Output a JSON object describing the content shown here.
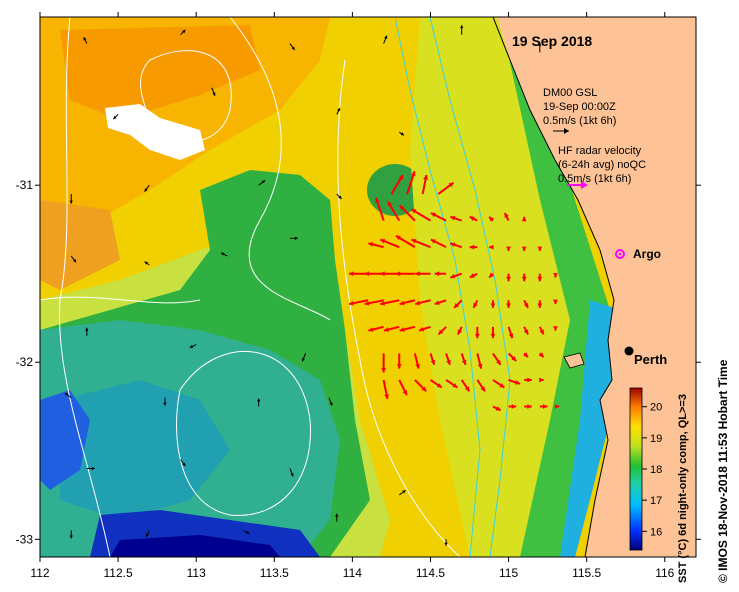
{
  "map": {
    "date_title": "19 Sep 2018",
    "gsl_legend": {
      "line1": "DM00 GSL",
      "line2": "19-Sep 00:00Z",
      "line3": "0.5m/s (1kt 6h)",
      "arrow_color": "#000000"
    },
    "hf_legend": {
      "line1": "HF radar velocity",
      "line2": "(6-24h avg) noQC",
      "line3": "0.5m/s (1kt 6h)",
      "arrow_color": "#ff00ff"
    },
    "argo_label": "Argo",
    "argo_color": "#ff00ff",
    "perth_label": "Perth",
    "land_color": "#fdc396",
    "hf_vector_color": "#ff0000",
    "contour_color": "#ffffff",
    "isobath_color": "#40d0e0"
  },
  "axes": {
    "x_ticks": [
      "112",
      "112.5",
      "113",
      "113.5",
      "114",
      "114.5",
      "115",
      "115.5",
      "116"
    ],
    "y_ticks": [
      "-31",
      "-32",
      "-33"
    ],
    "x_range": [
      112,
      116.2
    ],
    "y_range": [
      -33.1,
      -30.05
    ]
  },
  "colorbar": {
    "ticks": [
      "16",
      "17",
      "18",
      "19",
      "20"
    ],
    "range": [
      15.4,
      20.6
    ],
    "caption": "SST (°C) 6d night-only comp, QL>=3"
  },
  "credit": "© IMOS 18-Nov-2018 11:53 Hobart Time",
  "vectors": {
    "hf_radar": [
      {
        "lon": 114.25,
        "lat": -31.05,
        "u": 0.3,
        "v": 0.5
      },
      {
        "lon": 114.35,
        "lat": -31.05,
        "u": 0.2,
        "v": 0.6
      },
      {
        "lon": 114.45,
        "lat": -31.05,
        "u": 0.1,
        "v": 0.5
      },
      {
        "lon": 114.55,
        "lat": -31.05,
        "u": 0.4,
        "v": 0.3
      },
      {
        "lon": 114.2,
        "lat": -31.2,
        "u": -0.2,
        "v": 0.6
      },
      {
        "lon": 114.3,
        "lat": -31.2,
        "u": -0.3,
        "v": 0.5
      },
      {
        "lon": 114.4,
        "lat": -31.2,
        "u": -0.4,
        "v": 0.4
      },
      {
        "lon": 114.5,
        "lat": -31.2,
        "u": -0.5,
        "v": 0.3
      },
      {
        "lon": 114.6,
        "lat": -31.2,
        "u": -0.4,
        "v": 0.2
      },
      {
        "lon": 114.7,
        "lat": -31.2,
        "u": -0.3,
        "v": 0.1
      },
      {
        "lon": 114.8,
        "lat": -31.2,
        "u": -0.2,
        "v": 0.1
      },
      {
        "lon": 114.9,
        "lat": -31.2,
        "u": -0.1,
        "v": 0.1
      },
      {
        "lon": 115.0,
        "lat": -31.2,
        "u": -0.1,
        "v": 0.2
      },
      {
        "lon": 115.1,
        "lat": -31.2,
        "u": 0.0,
        "v": 0.1
      },
      {
        "lon": 114.2,
        "lat": -31.35,
        "u": -0.4,
        "v": 0.1
      },
      {
        "lon": 114.3,
        "lat": -31.35,
        "u": -0.5,
        "v": 0.2
      },
      {
        "lon": 114.4,
        "lat": -31.35,
        "u": -0.5,
        "v": 0.3
      },
      {
        "lon": 114.5,
        "lat": -31.35,
        "u": -0.5,
        "v": 0.2
      },
      {
        "lon": 114.6,
        "lat": -31.35,
        "u": -0.4,
        "v": 0.2
      },
      {
        "lon": 114.7,
        "lat": -31.35,
        "u": -0.3,
        "v": 0.1
      },
      {
        "lon": 114.8,
        "lat": -31.35,
        "u": -0.2,
        "v": 0.0
      },
      {
        "lon": 114.9,
        "lat": -31.35,
        "u": -0.1,
        "v": 0.0
      },
      {
        "lon": 115.0,
        "lat": -31.35,
        "u": 0.0,
        "v": -0.1
      },
      {
        "lon": 115.1,
        "lat": -31.35,
        "u": 0.0,
        "v": -0.1
      },
      {
        "lon": 115.2,
        "lat": -31.35,
        "u": 0.0,
        "v": -0.1
      },
      {
        "lon": 114.1,
        "lat": -31.5,
        "u": -0.5,
        "v": 0.0
      },
      {
        "lon": 114.2,
        "lat": -31.5,
        "u": -0.5,
        "v": 0.0
      },
      {
        "lon": 114.3,
        "lat": -31.5,
        "u": -0.5,
        "v": 0.0
      },
      {
        "lon": 114.4,
        "lat": -31.5,
        "u": -0.5,
        "v": 0.0
      },
      {
        "lon": 114.5,
        "lat": -31.5,
        "u": -0.4,
        "v": 0.0
      },
      {
        "lon": 114.6,
        "lat": -31.5,
        "u": -0.3,
        "v": 0.0
      },
      {
        "lon": 114.7,
        "lat": -31.5,
        "u": -0.3,
        "v": -0.1
      },
      {
        "lon": 114.8,
        "lat": -31.5,
        "u": -0.2,
        "v": -0.1
      },
      {
        "lon": 114.9,
        "lat": -31.5,
        "u": -0.1,
        "v": -0.1
      },
      {
        "lon": 115.0,
        "lat": -31.5,
        "u": 0.0,
        "v": -0.2
      },
      {
        "lon": 115.1,
        "lat": -31.5,
        "u": 0.0,
        "v": -0.2
      },
      {
        "lon": 115.2,
        "lat": -31.5,
        "u": 0.0,
        "v": -0.2
      },
      {
        "lon": 115.3,
        "lat": -31.5,
        "u": 0.0,
        "v": -0.1
      },
      {
        "lon": 114.1,
        "lat": -31.65,
        "u": -0.5,
        "v": -0.1
      },
      {
        "lon": 114.2,
        "lat": -31.65,
        "u": -0.5,
        "v": -0.1
      },
      {
        "lon": 114.3,
        "lat": -31.65,
        "u": -0.5,
        "v": -0.1
      },
      {
        "lon": 114.4,
        "lat": -31.65,
        "u": -0.4,
        "v": -0.1
      },
      {
        "lon": 114.5,
        "lat": -31.65,
        "u": -0.4,
        "v": -0.1
      },
      {
        "lon": 114.6,
        "lat": -31.65,
        "u": -0.3,
        "v": -0.1
      },
      {
        "lon": 114.7,
        "lat": -31.65,
        "u": -0.2,
        "v": -0.2
      },
      {
        "lon": 114.8,
        "lat": -31.65,
        "u": -0.1,
        "v": -0.2
      },
      {
        "lon": 114.9,
        "lat": -31.65,
        "u": 0.0,
        "v": -0.2
      },
      {
        "lon": 115.0,
        "lat": -31.65,
        "u": 0.0,
        "v": -0.2
      },
      {
        "lon": 115.1,
        "lat": -31.65,
        "u": 0.1,
        "v": -0.2
      },
      {
        "lon": 115.2,
        "lat": -31.65,
        "u": 0.0,
        "v": -0.2
      },
      {
        "lon": 115.3,
        "lat": -31.65,
        "u": 0.0,
        "v": -0.1
      },
      {
        "lon": 114.2,
        "lat": -31.8,
        "u": -0.4,
        "v": -0.1
      },
      {
        "lon": 114.3,
        "lat": -31.8,
        "u": -0.4,
        "v": -0.1
      },
      {
        "lon": 114.4,
        "lat": -31.8,
        "u": -0.4,
        "v": -0.1
      },
      {
        "lon": 114.5,
        "lat": -31.8,
        "u": -0.3,
        "v": -0.1
      },
      {
        "lon": 114.6,
        "lat": -31.8,
        "u": -0.2,
        "v": -0.2
      },
      {
        "lon": 114.7,
        "lat": -31.8,
        "u": -0.1,
        "v": -0.2
      },
      {
        "lon": 114.8,
        "lat": -31.8,
        "u": 0.0,
        "v": -0.3
      },
      {
        "lon": 114.9,
        "lat": -31.8,
        "u": 0.0,
        "v": -0.3
      },
      {
        "lon": 115.0,
        "lat": -31.8,
        "u": 0.1,
        "v": -0.3
      },
      {
        "lon": 115.1,
        "lat": -31.8,
        "u": 0.1,
        "v": -0.2
      },
      {
        "lon": 115.2,
        "lat": -31.8,
        "u": 0.1,
        "v": -0.2
      },
      {
        "lon": 115.3,
        "lat": -31.8,
        "u": 0.0,
        "v": -0.1
      },
      {
        "lon": 114.2,
        "lat": -31.95,
        "u": 0.0,
        "v": -0.5
      },
      {
        "lon": 114.3,
        "lat": -31.95,
        "u": 0.0,
        "v": -0.4
      },
      {
        "lon": 114.4,
        "lat": -31.95,
        "u": 0.1,
        "v": -0.4
      },
      {
        "lon": 114.5,
        "lat": -31.95,
        "u": 0.1,
        "v": -0.3
      },
      {
        "lon": 114.6,
        "lat": -31.95,
        "u": 0.1,
        "v": -0.3
      },
      {
        "lon": 114.7,
        "lat": -31.95,
        "u": 0.1,
        "v": -0.3
      },
      {
        "lon": 114.8,
        "lat": -31.95,
        "u": 0.1,
        "v": -0.4
      },
      {
        "lon": 114.9,
        "lat": -31.95,
        "u": 0.2,
        "v": -0.3
      },
      {
        "lon": 115.0,
        "lat": -31.95,
        "u": 0.2,
        "v": -0.2
      },
      {
        "lon": 115.1,
        "lat": -31.95,
        "u": 0.1,
        "v": -0.1
      },
      {
        "lon": 115.2,
        "lat": -31.95,
        "u": 0.1,
        "v": -0.1
      },
      {
        "lon": 114.2,
        "lat": -32.1,
        "u": 0.1,
        "v": -0.5
      },
      {
        "lon": 114.3,
        "lat": -32.1,
        "u": 0.2,
        "v": -0.4
      },
      {
        "lon": 114.4,
        "lat": -32.1,
        "u": 0.3,
        "v": -0.3
      },
      {
        "lon": 114.5,
        "lat": -32.1,
        "u": 0.3,
        "v": -0.2
      },
      {
        "lon": 114.6,
        "lat": -32.1,
        "u": 0.3,
        "v": -0.2
      },
      {
        "lon": 114.7,
        "lat": -32.1,
        "u": 0.2,
        "v": -0.3
      },
      {
        "lon": 114.8,
        "lat": -32.1,
        "u": 0.2,
        "v": -0.3
      },
      {
        "lon": 114.9,
        "lat": -32.1,
        "u": 0.3,
        "v": -0.2
      },
      {
        "lon": 115.0,
        "lat": -32.1,
        "u": 0.3,
        "v": -0.1
      },
      {
        "lon": 115.1,
        "lat": -32.1,
        "u": 0.2,
        "v": 0.0
      },
      {
        "lon": 115.2,
        "lat": -32.1,
        "u": 0.1,
        "v": 0.0
      },
      {
        "lon": 114.9,
        "lat": -32.25,
        "u": 0.2,
        "v": -0.1
      },
      {
        "lon": 115.0,
        "lat": -32.25,
        "u": 0.2,
        "v": 0.0
      },
      {
        "lon": 115.1,
        "lat": -32.25,
        "u": 0.2,
        "v": 0.0
      },
      {
        "lon": 115.2,
        "lat": -32.25,
        "u": 0.2,
        "v": 0.0
      },
      {
        "lon": 115.3,
        "lat": -32.25,
        "u": 0.1,
        "v": 0.0
      }
    ],
    "model": [
      {
        "lon": 112.3,
        "lat": -30.2,
        "u": -0.02,
        "v": 0.04
      },
      {
        "lon": 112.9,
        "lat": -30.15,
        "u": 0.03,
        "v": 0.03
      },
      {
        "lon": 113.6,
        "lat": -30.2,
        "u": 0.03,
        "v": -0.04
      },
      {
        "lon": 114.2,
        "lat": -30.2,
        "u": 0.02,
        "v": 0.05
      },
      {
        "lon": 114.7,
        "lat": -30.15,
        "u": 0.0,
        "v": 0.06
      },
      {
        "lon": 115.2,
        "lat": -30.25,
        "u": 0.0,
        "v": 0.06
      },
      {
        "lon": 112.5,
        "lat": -30.6,
        "u": -0.03,
        "v": -0.03
      },
      {
        "lon": 113.1,
        "lat": -30.45,
        "u": 0.02,
        "v": -0.05
      },
      {
        "lon": 113.9,
        "lat": -30.6,
        "u": 0.02,
        "v": 0.04
      },
      {
        "lon": 114.3,
        "lat": -30.7,
        "u": 0.03,
        "v": -0.02
      },
      {
        "lon": 112.2,
        "lat": -31.05,
        "u": 0.0,
        "v": -0.06
      },
      {
        "lon": 112.7,
        "lat": -31.0,
        "u": -0.03,
        "v": -0.04
      },
      {
        "lon": 113.4,
        "lat": -31.0,
        "u": 0.04,
        "v": 0.03
      },
      {
        "lon": 113.9,
        "lat": -31.05,
        "u": 0.03,
        "v": -0.03
      },
      {
        "lon": 112.2,
        "lat": -31.4,
        "u": 0.03,
        "v": -0.04
      },
      {
        "lon": 112.7,
        "lat": -31.45,
        "u": -0.03,
        "v": 0.02
      },
      {
        "lon": 113.2,
        "lat": -31.4,
        "u": -0.04,
        "v": 0.02
      },
      {
        "lon": 113.6,
        "lat": -31.3,
        "u": 0.05,
        "v": 0.0
      },
      {
        "lon": 112.3,
        "lat": -31.85,
        "u": 0.0,
        "v": 0.05
      },
      {
        "lon": 113.0,
        "lat": -31.9,
        "u": -0.04,
        "v": -0.02
      },
      {
        "lon": 113.7,
        "lat": -31.95,
        "u": -0.02,
        "v": -0.05
      },
      {
        "lon": 112.2,
        "lat": -32.2,
        "u": -0.04,
        "v": 0.03
      },
      {
        "lon": 112.8,
        "lat": -32.2,
        "u": 0.0,
        "v": -0.05
      },
      {
        "lon": 113.4,
        "lat": -32.25,
        "u": 0.0,
        "v": 0.05
      },
      {
        "lon": 113.85,
        "lat": -32.2,
        "u": 0.02,
        "v": -0.05
      },
      {
        "lon": 112.3,
        "lat": -32.6,
        "u": 0.05,
        "v": 0.0
      },
      {
        "lon": 112.9,
        "lat": -32.55,
        "u": 0.03,
        "v": -0.04
      },
      {
        "lon": 113.6,
        "lat": -32.6,
        "u": 0.02,
        "v": -0.05
      },
      {
        "lon": 114.3,
        "lat": -32.75,
        "u": 0.04,
        "v": 0.03
      },
      {
        "lon": 112.2,
        "lat": -32.95,
        "u": 0.0,
        "v": -0.05
      },
      {
        "lon": 112.7,
        "lat": -32.95,
        "u": -0.02,
        "v": -0.04
      },
      {
        "lon": 113.3,
        "lat": -32.95,
        "u": 0.04,
        "v": -0.02
      },
      {
        "lon": 113.9,
        "lat": -32.9,
        "u": 0.0,
        "v": 0.05
      },
      {
        "lon": 114.6,
        "lat": -33.0,
        "u": 0.0,
        "v": -0.04
      }
    ]
  }
}
